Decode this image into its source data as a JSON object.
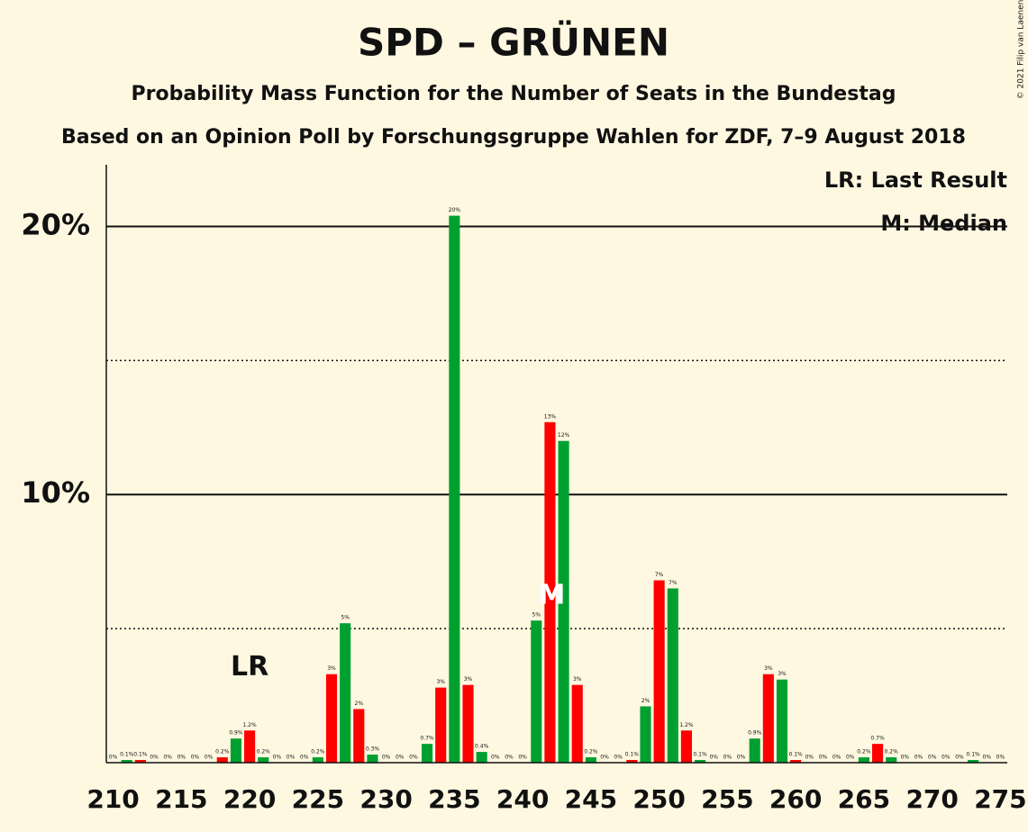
{
  "chart_data": {
    "type": "bar",
    "title": "SPD – GRÜNEN",
    "subtitle": "Probability Mass Function for the Number of Seats in the Bundestag",
    "subtitle2": "Based on an Opinion Poll by Forschungsgruppe Wahlen for ZDF, 7–9 August 2018",
    "copyright": "© 2021 Filip van Laenen",
    "legend": [
      "LR: Last Result",
      "M: Median"
    ],
    "last_result": {
      "x": 220,
      "label": "LR"
    },
    "median": {
      "x": 242,
      "label": "M"
    },
    "x": [
      210,
      211,
      212,
      213,
      214,
      215,
      216,
      217,
      218,
      219,
      220,
      221,
      222,
      223,
      224,
      225,
      226,
      227,
      228,
      229,
      230,
      231,
      232,
      233,
      234,
      235,
      236,
      237,
      238,
      239,
      240,
      241,
      242,
      243,
      244,
      245,
      246,
      247,
      248,
      249,
      250,
      251,
      252,
      253,
      254,
      255,
      256,
      257,
      258,
      259,
      260,
      261,
      262,
      263,
      264,
      265,
      266,
      267,
      268,
      269,
      270,
      271,
      272,
      273,
      274,
      275
    ],
    "values": [
      0,
      0.1,
      0.1,
      0,
      0,
      0,
      0,
      0,
      0.2,
      0.9,
      1.2,
      0.2,
      0,
      0,
      0,
      0.2,
      3.3,
      5.2,
      2.0,
      0.3,
      0,
      0,
      0,
      0.7,
      2.8,
      20.4,
      2.9,
      0.4,
      0,
      0,
      0,
      5.3,
      12.7,
      12.0,
      2.9,
      0.2,
      0,
      0,
      0.1,
      2.1,
      6.8,
      6.5,
      1.2,
      0.1,
      0,
      0,
      0,
      0.9,
      3.3,
      3.1,
      0.1,
      0,
      0,
      0,
      0,
      0.2,
      0.7,
      0.2,
      0,
      0,
      0,
      0,
      0,
      0.1,
      0,
      0
    ],
    "value_labels": [
      "0%",
      "0.1%",
      "0.1%",
      "0%",
      "0%",
      "0%",
      "0%",
      "0%",
      "0.2%",
      "0.9%",
      "1.2%",
      "0.2%",
      "0%",
      "0%",
      "0%",
      "0.2%",
      "3%",
      "5%",
      "2%",
      "0.3%",
      "0%",
      "0%",
      "0%",
      "0.7%",
      "3%",
      "20%",
      "3%",
      "0.4%",
      "0%",
      "0%",
      "0%",
      "5%",
      "13%",
      "12%",
      "3%",
      "0.2%",
      "0%",
      "0%",
      "0.1%",
      "2%",
      "7%",
      "7%",
      "1.2%",
      "0.1%",
      "0%",
      "0%",
      "0%",
      "0.9%",
      "3%",
      "3%",
      "0.1%",
      "0%",
      "0%",
      "0%",
      "0%",
      "0.2%",
      "0.7%",
      "0.2%",
      "0%",
      "0%",
      "0%",
      "0%",
      "0%",
      "0.1%",
      "0%",
      "0%"
    ],
    "colors": [
      "#ff0000",
      "#00a030",
      "#ff0000",
      "#00a030",
      "#ff0000",
      "#00a030",
      "#ff0000",
      "#00a030",
      "#ff0000",
      "#00a030",
      "#ff0000",
      "#00a030",
      "#ff0000",
      "#00a030",
      "#ff0000",
      "#00a030",
      "#ff0000",
      "#00a030",
      "#ff0000",
      "#00a030",
      "#ff0000",
      "#00a030",
      "#ff0000",
      "#00a030",
      "#ff0000",
      "#00a030",
      "#ff0000",
      "#00a030",
      "#ff0000",
      "#00a030",
      "#ff0000",
      "#00a030",
      "#ff0000",
      "#00a030",
      "#ff0000",
      "#00a030",
      "#ff0000",
      "#00a030",
      "#ff0000",
      "#00a030",
      "#ff0000",
      "#00a030",
      "#ff0000",
      "#00a030",
      "#ff0000",
      "#00a030",
      "#ff0000",
      "#00a030",
      "#ff0000",
      "#00a030",
      "#ff0000",
      "#00a030",
      "#ff0000",
      "#00a030",
      "#ff0000",
      "#00a030",
      "#ff0000",
      "#00a030",
      "#ff0000",
      "#00a030",
      "#ff0000",
      "#00a030",
      "#ff0000",
      "#00a030",
      "#ff0000",
      "#00a030"
    ],
    "xlim": [
      209.5,
      275.5
    ],
    "xticks": [
      210,
      215,
      220,
      225,
      230,
      235,
      240,
      245,
      250,
      255,
      260,
      265,
      270,
      275
    ],
    "ylim": [
      0,
      22.3
    ],
    "yticks": [
      {
        "value": 10,
        "label": "10%"
      },
      {
        "value": 20,
        "label": "20%"
      }
    ],
    "minor_yticks": [
      5,
      15
    ],
    "grid": true
  }
}
